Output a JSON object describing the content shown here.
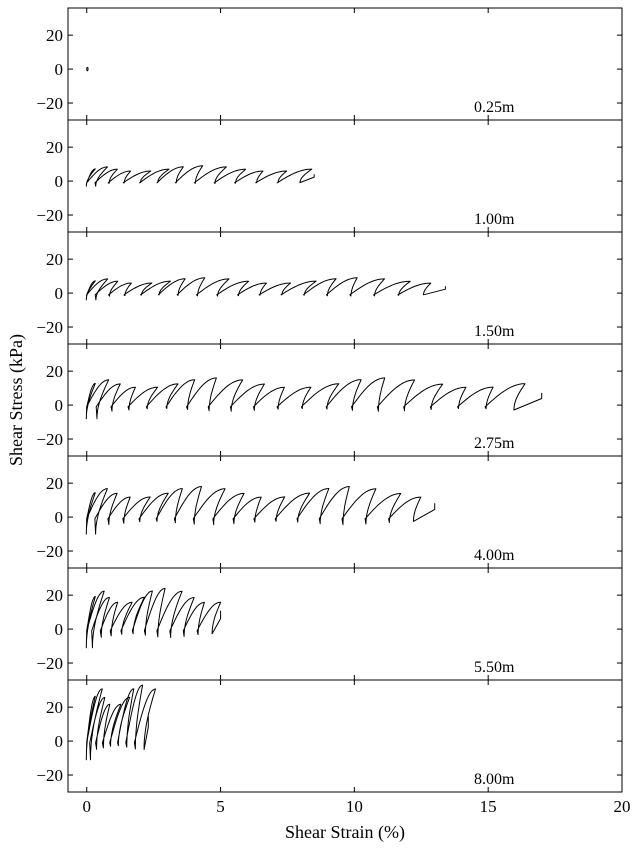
{
  "chart_data": {
    "type": "line",
    "xlabel": "Shear Strain (%)",
    "ylabel": "Shear Stress (kPa)",
    "xlim": [
      -0.7,
      20
    ],
    "ylim": [
      -30,
      36
    ],
    "x_ticks": [
      0,
      5,
      10,
      15,
      20
    ],
    "y_ticks": [
      -20,
      0,
      20
    ],
    "x_tick_labels": [
      "0",
      "5",
      "10",
      "15",
      "20"
    ],
    "y_tick_labels": [
      "−20",
      "0",
      "20"
    ],
    "grid": false,
    "panels": [
      {
        "depth_label": "0.25m",
        "max_strain": 0.05,
        "peak_stress": 1,
        "min_stress": -1,
        "n_cycles": 1
      },
      {
        "depth_label": "1.00m",
        "max_strain": 8.5,
        "peak_stress": 9,
        "min_stress": -3,
        "n_cycles": 13
      },
      {
        "depth_label": "1.50m",
        "max_strain": 13.4,
        "peak_stress": 9,
        "min_stress": -4,
        "n_cycles": 18
      },
      {
        "depth_label": "2.75m",
        "max_strain": 17.0,
        "peak_stress": 16,
        "min_stress": -8,
        "n_cycles": 20
      },
      {
        "depth_label": "4.00m",
        "max_strain": 13.0,
        "peak_stress": 18,
        "min_stress": -10,
        "n_cycles": 18
      },
      {
        "depth_label": "5.50m",
        "max_strain": 5.0,
        "peak_stress": 24,
        "min_stress": -11,
        "n_cycles": 12
      },
      {
        "depth_label": "8.00m",
        "max_strain": 2.3,
        "peak_stress": 33,
        "min_stress": -11,
        "n_cycles": 9
      }
    ]
  }
}
